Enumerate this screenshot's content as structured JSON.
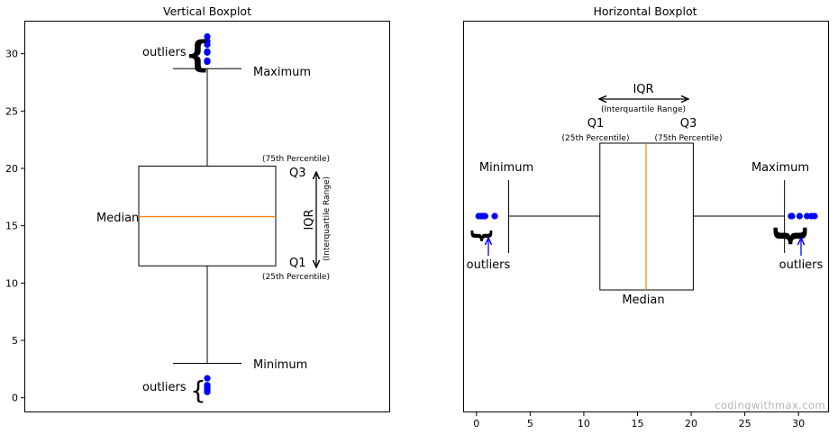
{
  "colors": {
    "box": "#000000",
    "median": "#ff7f0e",
    "outlier": "#0000ff",
    "arrow": "#0000ff",
    "watermark": "#b5b5b5"
  },
  "watermark": "codingwithmax.com",
  "chart_data": [
    {
      "type": "boxplot",
      "orientation": "vertical",
      "title": "Vertical Boxplot",
      "xlabel": "",
      "ylabel": "",
      "ylim": [
        -1.2,
        32.8
      ],
      "yticks": [
        0,
        5,
        10,
        15,
        20,
        25,
        30
      ],
      "grid": false,
      "stats": {
        "min": 3.0,
        "q1": 11.5,
        "median": 15.8,
        "q3": 20.2,
        "max": 28.7
      },
      "outliers_high": [
        29.3,
        29.4,
        30.1,
        30.2,
        30.8,
        31.1,
        31.5
      ],
      "outliers_low": [
        0.5,
        0.7,
        0.9,
        1.1,
        1.7
      ],
      "annotations": {
        "outliers_top": "outliers",
        "outliers_bottom": "outliers",
        "maximum": "Maximum",
        "minimum": "Minimum",
        "median": "Median",
        "q3": "Q3",
        "q3_note": "(75th Percentile)",
        "q1": "Q1",
        "q1_note": "(25th Percentile)",
        "iqr": "IQR",
        "iqr_note": "(Interquartile Range)"
      }
    },
    {
      "type": "boxplot",
      "orientation": "horizontal",
      "title": "Horizontal Boxplot",
      "xlabel": "",
      "ylabel": "",
      "xlim": [
        -1.2,
        32.8
      ],
      "xticks": [
        0,
        5,
        10,
        15,
        20,
        25,
        30
      ],
      "grid": false,
      "stats": {
        "min": 3.0,
        "q1": 11.5,
        "median": 15.8,
        "q3": 20.2,
        "max": 28.7
      },
      "outliers_low": [
        0.2,
        0.4,
        0.6,
        0.8,
        1.7
      ],
      "outliers_high": [
        29.3,
        29.4,
        30.1,
        30.8,
        31.2,
        31.5
      ],
      "annotations": {
        "iqr": "IQR",
        "iqr_note": "(Interquartile Range)",
        "q1": "Q1",
        "q1_note": "(25th Percentile)",
        "q3": "Q3",
        "q3_note": "(75th Percentile)",
        "minimum": "Minimum",
        "maximum": "Maximum",
        "outliers_left": "outliers",
        "outliers_right": "outliers",
        "median": "Median"
      }
    }
  ]
}
